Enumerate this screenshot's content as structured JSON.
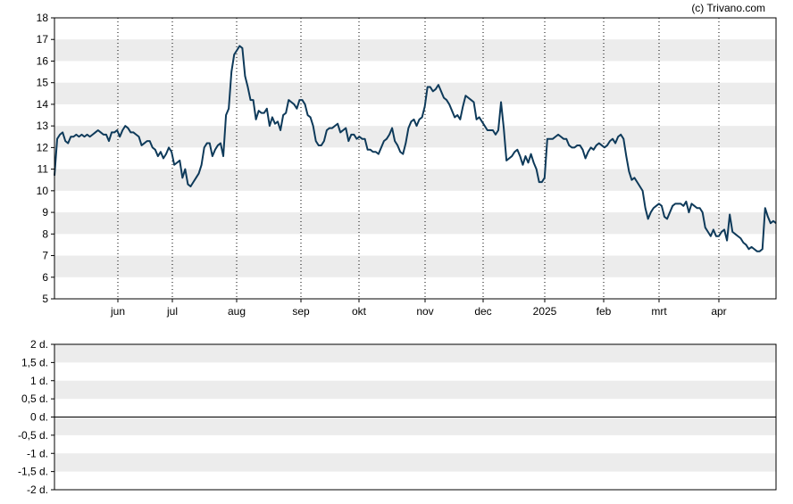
{
  "credit": "(c) Trivano.com",
  "colors": {
    "line": "#0e3a5a",
    "band": "#ececec",
    "frame": "#000000",
    "grid": "#000000"
  },
  "chart_data": [
    {
      "type": "line",
      "title": "",
      "xlabel": "",
      "ylabel": "",
      "x_ticks": [
        "jun",
        "jul",
        "aug",
        "sep",
        "okt",
        "nov",
        "dec",
        "2025",
        "feb",
        "mrt",
        "apr"
      ],
      "y_ticks": [
        "5",
        "6",
        "7",
        "8",
        "9",
        "10",
        "11",
        "12",
        "13",
        "14",
        "15",
        "16",
        "17",
        "18"
      ],
      "ylim": [
        5,
        18
      ],
      "grid": {
        "x": "dotted vertical",
        "y": "alternating bands"
      },
      "series": [
        {
          "values": [
            10.7,
            12.4,
            12.6,
            12.7,
            12.3,
            12.2,
            12.5,
            12.5,
            12.6,
            12.5,
            12.6,
            12.5,
            12.6,
            12.5,
            12.6,
            12.7,
            12.8,
            12.7,
            12.6,
            12.6,
            12.3,
            12.7,
            12.7,
            12.8,
            12.5,
            12.8,
            13.0,
            12.9,
            12.7,
            12.7,
            12.6,
            12.5,
            12.1,
            12.2,
            12.3,
            12.3,
            12.0,
            11.9,
            11.6,
            11.8,
            11.5,
            11.7,
            12.0,
            11.8,
            11.2,
            11.3,
            11.4,
            10.6,
            11.0,
            10.3,
            10.2,
            10.4,
            10.6,
            10.8,
            11.2,
            12.0,
            12.2,
            12.2,
            11.6,
            11.9,
            12.1,
            12.2,
            11.6,
            13.5,
            13.8,
            15.5,
            16.3,
            16.5,
            16.7,
            16.6,
            15.3,
            14.8,
            14.2,
            14.2,
            13.3,
            13.7,
            13.6,
            13.6,
            13.8,
            13.0,
            13.4,
            13.1,
            13.2,
            12.8,
            13.5,
            13.6,
            14.2,
            14.1,
            14.0,
            13.8,
            14.2,
            14.2,
            14.0,
            13.5,
            13.4,
            13.0,
            12.3,
            12.1,
            12.1,
            12.3,
            12.8,
            12.9,
            12.9,
            13.0,
            13.1,
            12.7,
            12.8,
            12.9,
            12.3,
            12.6,
            12.6,
            12.4,
            12.5,
            12.4,
            12.4,
            11.9,
            11.9,
            11.8,
            11.8,
            11.7,
            12.0,
            12.3,
            12.4,
            12.6,
            12.9,
            12.3,
            12.1,
            11.8,
            11.7,
            12.2,
            12.9,
            13.2,
            13.3,
            13.0,
            13.3,
            13.4,
            13.9,
            14.8,
            14.8,
            14.6,
            14.7,
            14.9,
            14.6,
            14.3,
            14.2,
            14.0,
            13.7,
            13.4,
            13.5,
            13.3,
            13.9,
            14.4,
            14.3,
            14.2,
            14.1,
            13.3,
            13.4,
            13.2,
            13.0,
            12.8,
            12.8,
            12.8,
            12.6,
            12.8,
            14.1,
            12.9,
            11.4,
            11.5,
            11.6,
            11.8,
            11.9,
            11.6,
            11.2,
            11.6,
            11.3,
            11.7,
            11.3,
            11.0,
            10.4,
            10.4,
            10.6,
            12.4,
            12.4,
            12.4,
            12.5,
            12.6,
            12.5,
            12.4,
            12.4,
            12.1,
            12.0,
            12.0,
            12.1,
            12.1,
            11.9,
            11.5,
            11.8,
            12.0,
            11.9,
            12.1,
            12.2,
            12.1,
            12.0,
            12.1,
            12.3,
            12.4,
            12.2,
            12.5,
            12.6,
            12.4,
            11.6,
            10.9,
            10.5,
            10.6,
            10.4,
            10.2,
            10.0,
            9.2,
            8.7,
            9.0,
            9.2,
            9.3,
            9.4,
            9.3,
            8.8,
            8.7,
            9.0,
            9.3,
            9.4,
            9.4,
            9.4,
            9.3,
            9.5,
            9.0,
            9.4,
            9.3,
            9.2,
            9.2,
            9.0,
            8.3,
            8.1,
            7.9,
            8.2,
            7.9,
            7.9,
            8.1,
            8.2,
            7.7,
            8.9,
            8.1,
            8.0,
            7.9,
            7.8,
            7.6,
            7.5,
            7.3,
            7.4,
            7.3,
            7.2,
            7.2,
            7.3,
            9.2,
            8.8,
            8.5,
            8.6,
            8.5
          ]
        }
      ]
    },
    {
      "type": "line",
      "title": "",
      "xlabel": "",
      "ylabel": "",
      "y_ticks": [
        "2 d.",
        "1,5 d.",
        "1 d.",
        "0,5 d.",
        "0 d.",
        "-0,5 d.",
        "-1 d.",
        "-1,5 d.",
        "-2 d."
      ],
      "ylim": [
        -2,
        2
      ],
      "baseline": 0,
      "grid": {
        "y": "alternating bands"
      },
      "series": []
    }
  ]
}
